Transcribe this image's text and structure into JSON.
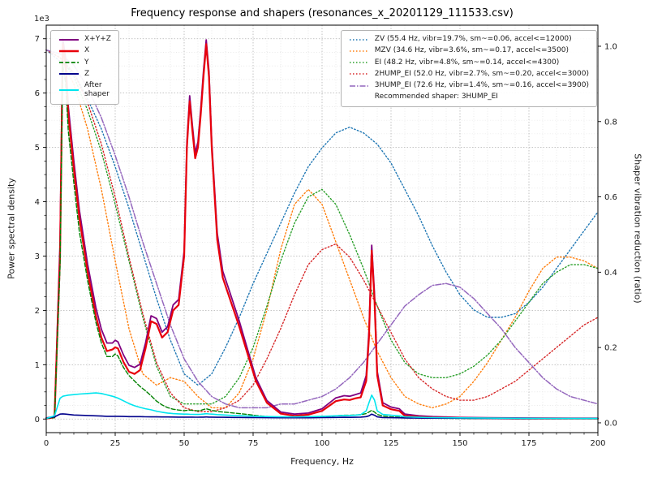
{
  "chart": {
    "title": "Frequency response and shapers (resonances_x_20201129_111533.csv)",
    "xlabel": "Frequency, Hz",
    "ylabel_left": "Power spectral density",
    "ylabel_right": "Shaper vibration reduction (ratio)",
    "offset_text": "1e3"
  },
  "legend_psd": {
    "items": [
      {
        "label": "X+Y+Z"
      },
      {
        "label": "X"
      },
      {
        "label": "Y"
      },
      {
        "label": "Z"
      },
      {
        "label": "After\nshaper"
      }
    ]
  },
  "legend_shapers": {
    "items": [
      {
        "label": "ZV (55.4 Hz, vibr=19.7%, sm~=0.06, accel<=12000)"
      },
      {
        "label": "MZV (34.6 Hz, vibr=3.6%, sm~=0.17, accel<=3500)"
      },
      {
        "label": "EI (48.2 Hz, vibr=4.8%, sm~=0.14, accel<=4300)"
      },
      {
        "label": "2HUMP_EI (52.0 Hz, vibr=2.7%, sm~=0.20, accel<=3000)"
      },
      {
        "label": "3HUMP_EI (72.6 Hz, vibr=1.4%, sm~=0.16, accel<=3900)"
      }
    ],
    "note": "Recommended shaper: 3HUMP_EI"
  },
  "chart_data": {
    "type": "line",
    "title": "Frequency response and shapers (resonances_x_20201129_111533.csv)",
    "xlabel": "Frequency, Hz",
    "ylabel_left": "Power spectral density",
    "ylabel_right": "Shaper vibration reduction (ratio)",
    "xlim": [
      0,
      200
    ],
    "ylim_left": [
      0,
      7000
    ],
    "ylim_right": [
      0,
      1.0
    ],
    "grid": true,
    "legend_left_position": "upper left",
    "legend_right_position": "upper right",
    "recommended_shaper": "3HUMP_EI",
    "xticks": {
      "values": [
        0,
        25,
        50,
        75,
        100,
        125,
        150,
        175,
        200
      ],
      "labels": [
        "0",
        "25",
        "50",
        "75",
        "100",
        "125",
        "150",
        "175",
        "200"
      ]
    },
    "yticks_left": {
      "offset_text": "1e3",
      "values": [
        0,
        1000,
        2000,
        3000,
        4000,
        5000,
        6000,
        7000
      ],
      "labels": [
        "0",
        "1",
        "2",
        "3",
        "4",
        "5",
        "6",
        "7"
      ]
    },
    "yticks_right": {
      "values": [
        0.0,
        0.2,
        0.4,
        0.6,
        0.8,
        1.0
      ],
      "labels": [
        "0.0",
        "0.2",
        "0.4",
        "0.6",
        "0.8",
        "1.0"
      ]
    },
    "psd": {
      "axis": "left",
      "x": [
        0,
        3,
        5,
        6,
        7,
        8,
        10,
        12,
        15,
        18,
        20,
        22,
        24,
        25,
        26,
        28,
        30,
        32,
        34,
        36,
        38,
        40,
        42,
        44,
        46,
        48,
        50,
        51,
        52,
        53,
        54,
        55,
        56,
        57,
        58,
        59,
        60,
        62,
        64,
        66,
        68,
        70,
        73,
        76,
        80,
        85,
        90,
        95,
        100,
        105,
        108,
        110,
        112,
        114,
        116,
        117,
        118,
        119,
        120,
        122,
        125,
        128,
        130,
        135,
        140,
        150,
        160,
        170,
        180,
        190,
        200
      ],
      "series": [
        {
          "name": "X+Y+Z",
          "color": "#800080",
          "dash": "",
          "width": 1.8,
          "values": [
            20,
            45,
            3250,
            7000,
            6650,
            5750,
            4750,
            3850,
            2850,
            2050,
            1650,
            1400,
            1400,
            1450,
            1420,
            1180,
            990,
            950,
            1010,
            1400,
            1900,
            1850,
            1600,
            1700,
            2100,
            2200,
            3100,
            5100,
            5950,
            5400,
            4900,
            5100,
            5700,
            6400,
            6980,
            6400,
            5100,
            3420,
            2720,
            2420,
            2110,
            1800,
            1280,
            760,
            340,
            130,
            90,
            110,
            190,
            390,
            430,
            420,
            450,
            480,
            800,
            1620,
            3200,
            2320,
            880,
            300,
            220,
            190,
            90,
            60,
            45,
            30,
            25,
            20,
            18,
            15,
            15
          ]
        },
        {
          "name": "X",
          "color": "#e8000b",
          "dash": "",
          "width": 2.2,
          "values": [
            10,
            30,
            3000,
            6900,
            6500,
            5600,
            4600,
            3700,
            2700,
            1900,
            1500,
            1250,
            1280,
            1320,
            1300,
            1050,
            870,
            830,
            900,
            1300,
            1800,
            1750,
            1500,
            1600,
            2000,
            2100,
            3000,
            5000,
            5850,
            5300,
            4800,
            5000,
            5600,
            6300,
            6900,
            6300,
            5000,
            3300,
            2600,
            2300,
            2000,
            1700,
            1200,
            700,
            300,
            100,
            60,
            80,
            150,
            330,
            360,
            350,
            380,
            400,
            700,
            1500,
            3100,
            2200,
            800,
            250,
            180,
            150,
            60,
            40,
            30,
            20,
            15,
            10,
            10,
            8,
            8
          ]
        },
        {
          "name": "Y",
          "color": "#008000",
          "dash": "5 2.4",
          "width": 1.4,
          "values": [
            10,
            25,
            2800,
            6500,
            6200,
            5300,
            4350,
            3450,
            2550,
            1780,
            1400,
            1150,
            1150,
            1200,
            1160,
            950,
            800,
            700,
            600,
            520,
            430,
            330,
            260,
            210,
            180,
            165,
            155,
            160,
            165,
            160,
            155,
            150,
            160,
            175,
            190,
            175,
            160,
            140,
            130,
            120,
            110,
            100,
            85,
            65,
            45,
            30,
            25,
            30,
            40,
            60,
            70,
            70,
            75,
            80,
            100,
            130,
            160,
            130,
            85,
            55,
            40,
            35,
            25,
            20,
            15,
            10,
            8,
            6,
            5,
            5,
            5
          ]
        },
        {
          "name": "Z",
          "color": "#00008b",
          "dash": "",
          "width": 1.6,
          "values": [
            15,
            40,
            90,
            95,
            90,
            85,
            75,
            70,
            65,
            60,
            55,
            50,
            50,
            50,
            50,
            48,
            45,
            45,
            44,
            42,
            40,
            40,
            38,
            38,
            37,
            36,
            35,
            35,
            36,
            35,
            34,
            34,
            35,
            36,
            38,
            36,
            35,
            33,
            32,
            31,
            30,
            30,
            28,
            27,
            25,
            24,
            23,
            24,
            26,
            30,
            32,
            31,
            33,
            35,
            45,
            60,
            90,
            70,
            40,
            28,
            25,
            24,
            20,
            18,
            16,
            14,
            12,
            10,
            10,
            10,
            10
          ]
        },
        {
          "name": "After shaper",
          "color": "#00e5ee",
          "dash": "",
          "width": 1.6,
          "values": [
            10,
            60,
            380,
            420,
            430,
            440,
            450,
            460,
            470,
            480,
            470,
            445,
            420,
            405,
            385,
            335,
            285,
            245,
            215,
            190,
            170,
            145,
            125,
            110,
            100,
            95,
            90,
            90,
            88,
            86,
            85,
            85,
            88,
            92,
            98,
            94,
            90,
            82,
            76,
            70,
            66,
            62,
            56,
            52,
            46,
            42,
            40,
            44,
            50,
            60,
            66,
            66,
            70,
            80,
            150,
            300,
            440,
            350,
            150,
            85,
            70,
            60,
            42,
            32,
            26,
            22,
            18,
            15,
            12,
            10,
            10
          ]
        }
      ]
    },
    "shapers": {
      "axis": "right",
      "x": [
        0,
        5,
        10,
        15,
        20,
        25,
        30,
        35,
        40,
        45,
        50,
        55,
        60,
        65,
        70,
        75,
        80,
        85,
        90,
        95,
        100,
        105,
        110,
        115,
        120,
        125,
        130,
        135,
        140,
        145,
        150,
        155,
        160,
        165,
        170,
        175,
        180,
        185,
        190,
        195,
        200
      ],
      "series": [
        {
          "name": "ZV",
          "freq_hz": 55.4,
          "vibr_pct": 19.7,
          "sm": 0.06,
          "max_accel": 12000,
          "color": "#1f77b4",
          "dash": "1.5 2.5",
          "width": 1.4,
          "values": [
            0.99,
            0.96,
            0.93,
            0.86,
            0.78,
            0.68,
            0.57,
            0.45,
            0.33,
            0.22,
            0.13,
            0.1,
            0.13,
            0.2,
            0.28,
            0.37,
            0.45,
            0.53,
            0.61,
            0.68,
            0.73,
            0.77,
            0.785,
            0.77,
            0.74,
            0.69,
            0.62,
            0.55,
            0.47,
            0.4,
            0.34,
            0.3,
            0.28,
            0.28,
            0.29,
            0.32,
            0.36,
            0.41,
            0.46,
            0.51,
            0.56
          ]
        },
        {
          "name": "MZV",
          "freq_hz": 34.6,
          "vibr_pct": 3.6,
          "sm": 0.17,
          "max_accel": 3500,
          "color": "#ff7f0e",
          "dash": "1.5 2.5",
          "width": 1.4,
          "values": [
            0.99,
            0.97,
            0.9,
            0.78,
            0.62,
            0.43,
            0.25,
            0.13,
            0.1,
            0.12,
            0.11,
            0.07,
            0.04,
            0.04,
            0.08,
            0.17,
            0.3,
            0.46,
            0.58,
            0.62,
            0.58,
            0.48,
            0.38,
            0.28,
            0.19,
            0.12,
            0.07,
            0.05,
            0.04,
            0.05,
            0.07,
            0.11,
            0.16,
            0.22,
            0.28,
            0.35,
            0.41,
            0.44,
            0.44,
            0.43,
            0.41
          ]
        },
        {
          "name": "EI",
          "freq_hz": 48.2,
          "vibr_pct": 4.8,
          "sm": 0.14,
          "max_accel": 4300,
          "color": "#2ca02c",
          "dash": "1.5 2.5",
          "width": 1.4,
          "values": [
            0.99,
            0.97,
            0.92,
            0.83,
            0.72,
            0.58,
            0.43,
            0.28,
            0.15,
            0.07,
            0.05,
            0.05,
            0.05,
            0.07,
            0.12,
            0.2,
            0.31,
            0.43,
            0.53,
            0.6,
            0.62,
            0.58,
            0.5,
            0.41,
            0.31,
            0.22,
            0.16,
            0.13,
            0.12,
            0.12,
            0.13,
            0.15,
            0.18,
            0.22,
            0.27,
            0.32,
            0.37,
            0.4,
            0.42,
            0.42,
            0.41
          ]
        },
        {
          "name": "2HUMP_EI",
          "freq_hz": 52.0,
          "vibr_pct": 2.7,
          "sm": 0.2,
          "max_accel": 3000,
          "color": "#d62728",
          "dash": "1.5 2.5",
          "width": 1.4,
          "values": [
            0.99,
            0.97,
            0.93,
            0.85,
            0.74,
            0.6,
            0.44,
            0.29,
            0.16,
            0.08,
            0.04,
            0.03,
            0.03,
            0.04,
            0.06,
            0.1,
            0.17,
            0.25,
            0.34,
            0.42,
            0.46,
            0.475,
            0.44,
            0.38,
            0.31,
            0.24,
            0.17,
            0.12,
            0.09,
            0.07,
            0.06,
            0.06,
            0.07,
            0.09,
            0.11,
            0.14,
            0.17,
            0.2,
            0.23,
            0.26,
            0.28
          ]
        },
        {
          "name": "3HUMP_EI",
          "freq_hz": 72.6,
          "vibr_pct": 1.4,
          "sm": 0.16,
          "max_accel": 3900,
          "color": "#9467bd",
          "dash": "7 2 1.5 2",
          "width": 1.5,
          "values": [
            0.99,
            0.98,
            0.95,
            0.89,
            0.81,
            0.71,
            0.6,
            0.48,
            0.37,
            0.26,
            0.17,
            0.11,
            0.07,
            0.05,
            0.04,
            0.04,
            0.04,
            0.05,
            0.05,
            0.06,
            0.07,
            0.09,
            0.12,
            0.16,
            0.21,
            0.26,
            0.31,
            0.34,
            0.365,
            0.37,
            0.36,
            0.33,
            0.29,
            0.25,
            0.2,
            0.16,
            0.12,
            0.09,
            0.07,
            0.06,
            0.05
          ]
        }
      ]
    }
  }
}
